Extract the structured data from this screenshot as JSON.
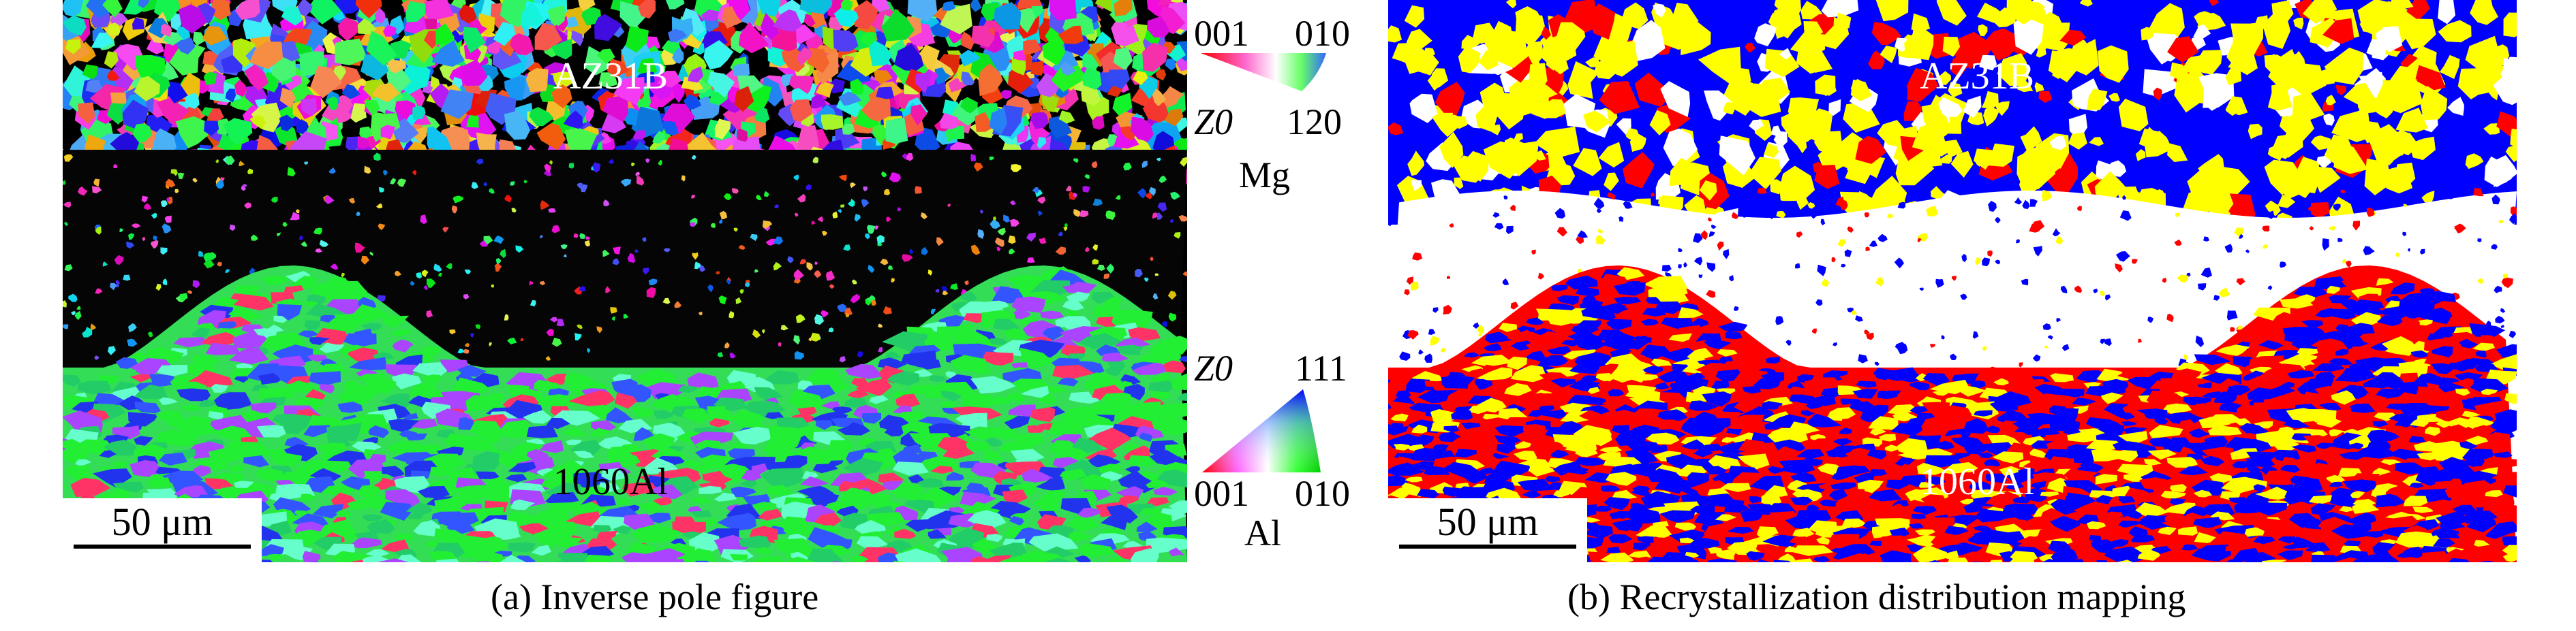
{
  "panel_a": {
    "top_material": "AZ31B",
    "bottom_material": "1060Al",
    "scale_bar": "50 μm",
    "caption": "(a) Inverse pole figure"
  },
  "panel_b": {
    "top_material": "AZ31B",
    "bottom_material": "1060Al",
    "scale_bar": "50 μm",
    "caption": "(b) Recrystallization distribution mapping"
  },
  "legend_mg": {
    "corner_left": "001",
    "corner_right": "010",
    "axis": "Z0",
    "corner_bottom": "120",
    "material": "Mg"
  },
  "legend_al": {
    "axis": "Z0",
    "corner_top": "111",
    "corner_left": "001",
    "corner_right": "010",
    "material": "Al"
  },
  "colors": {
    "recrystallized": "#0000ff",
    "substructured": "#ffff00",
    "deformed": "#ff0000",
    "interface_band": "#ffffff",
    "unindexed": "#000000"
  }
}
